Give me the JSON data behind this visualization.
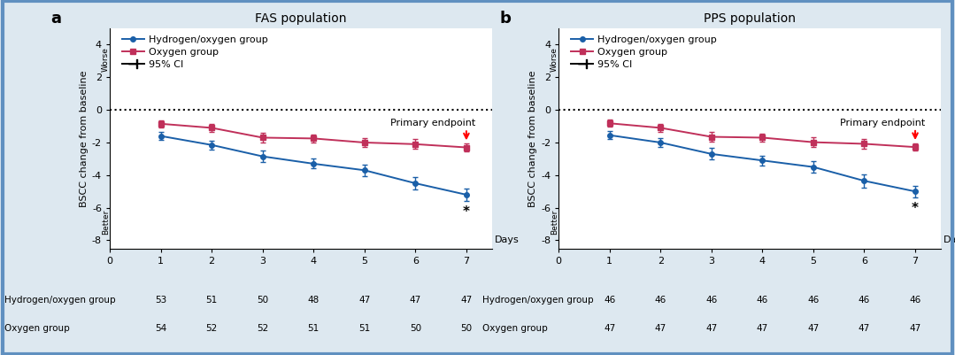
{
  "panel_a": {
    "title": "FAS population",
    "label": "a",
    "hydrogen_y": [
      -1.6,
      -2.15,
      -2.85,
      -3.3,
      -3.7,
      -4.5,
      -5.2
    ],
    "hydrogen_err": [
      0.25,
      0.28,
      0.35,
      0.3,
      0.35,
      0.4,
      0.38
    ],
    "oxygen_y": [
      -0.85,
      -1.1,
      -1.7,
      -1.75,
      -2.0,
      -2.1,
      -2.3
    ],
    "oxygen_err": [
      0.22,
      0.25,
      0.3,
      0.25,
      0.28,
      0.3,
      0.22
    ],
    "n_hydrogen": [
      53,
      51,
      50,
      48,
      47,
      47,
      47
    ],
    "n_oxygen": [
      54,
      52,
      52,
      51,
      51,
      50,
      50
    ]
  },
  "panel_b": {
    "title": "PPS population",
    "label": "b",
    "hydrogen_y": [
      -1.55,
      -2.0,
      -2.7,
      -3.1,
      -3.5,
      -4.35,
      -5.0
    ],
    "hydrogen_err": [
      0.25,
      0.28,
      0.35,
      0.3,
      0.35,
      0.4,
      0.35
    ],
    "oxygen_y": [
      -0.82,
      -1.1,
      -1.65,
      -1.7,
      -1.98,
      -2.08,
      -2.28
    ],
    "oxygen_err": [
      0.22,
      0.25,
      0.3,
      0.25,
      0.28,
      0.3,
      0.22
    ],
    "n_hydrogen": [
      46,
      46,
      46,
      46,
      46,
      46,
      46
    ],
    "n_oxygen": [
      47,
      47,
      47,
      47,
      47,
      47,
      47
    ]
  },
  "days": [
    1,
    2,
    3,
    4,
    5,
    6,
    7
  ],
  "xlim": [
    0,
    7.5
  ],
  "ylim": [
    -8.5,
    5.0
  ],
  "yticks": [
    -8,
    -6,
    -4,
    -2,
    0,
    2,
    4
  ],
  "xticks": [
    0,
    1,
    2,
    3,
    4,
    5,
    6,
    7
  ],
  "hydrogen_color": "#1a5fa8",
  "oxygen_color": "#c0305a",
  "background_color": "#dde8f0",
  "plot_bg": "#ffffff",
  "ylabel": "BSCC change from baseline",
  "xlabel_text": "Days",
  "ci_label": "95% CI",
  "primary_endpoint_label": "Primary endpoint",
  "star_label": "*",
  "worse_label": "Worse",
  "better_label": "Better",
  "hydrogen_legend": "Hydrogen/oxygen group",
  "oxygen_legend": "Oxygen group",
  "n_label_hydrogen": "Hydrogen/oxygen group",
  "n_label_oxygen": "Oxygen group",
  "border_color": "#6090c0",
  "title_fontsize": 10,
  "axis_label_fontsize": 8,
  "tick_fontsize": 8,
  "legend_fontsize": 8,
  "n_fontsize": 7.5,
  "panel_label_fontsize": 13
}
